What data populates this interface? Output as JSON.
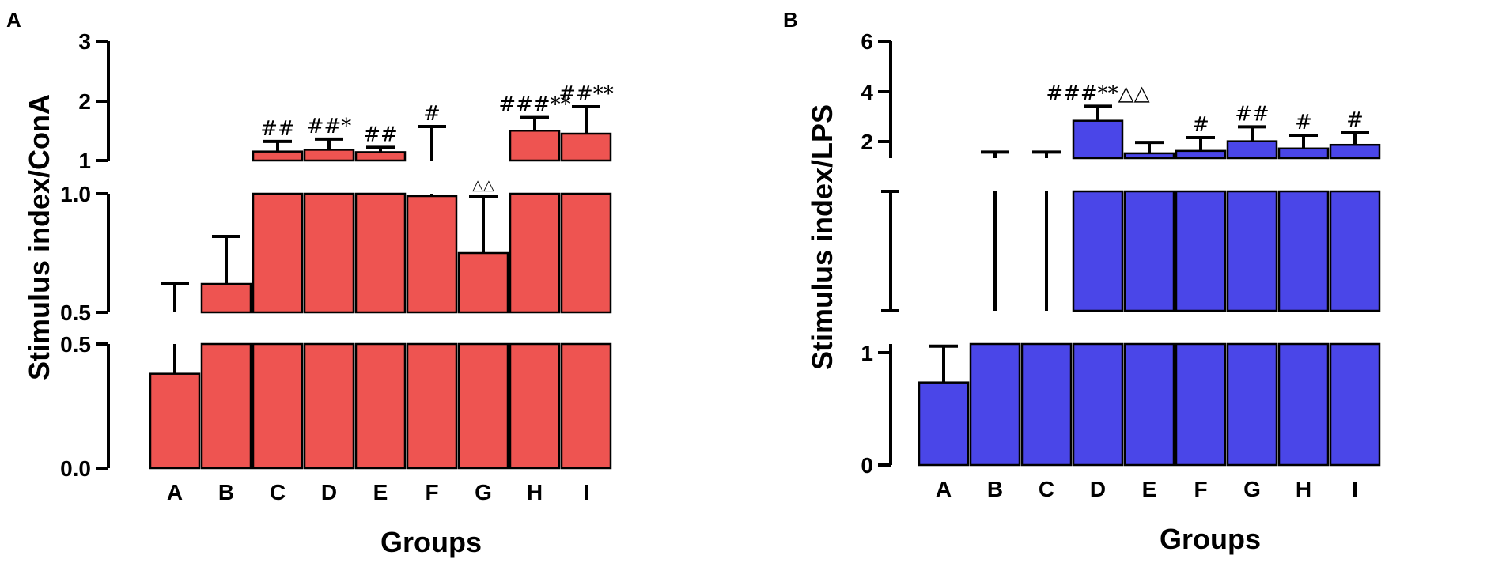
{
  "chart_data": [
    {
      "type": "bar",
      "panel": "A",
      "color": "#ee5451",
      "categories": [
        "A",
        "B",
        "C",
        "D",
        "E",
        "F",
        "G",
        "H",
        "I"
      ],
      "values": [
        0.38,
        0.62,
        1.15,
        1.18,
        1.14,
        0.99,
        0.75,
        1.5,
        1.45
      ],
      "error": [
        0.24,
        0.2,
        0.17,
        0.18,
        0.08,
        0.58,
        0.24,
        0.22,
        0.45
      ],
      "annotations": [
        "",
        "",
        "##",
        "##*",
        "##",
        "#",
        "△△",
        "###**",
        "##**"
      ],
      "xlabel": "Groups",
      "ylabel": "Stimulus index/ConA",
      "segments": [
        {
          "range": [
            0,
            0.5
          ],
          "ticks": [
            "0.0",
            "0.5"
          ]
        },
        {
          "range": [
            0.5,
            1.0
          ],
          "ticks": [
            "0.5",
            "1.0"
          ]
        },
        {
          "range": [
            1,
            3
          ],
          "ticks": [
            "1",
            "2",
            "3"
          ]
        }
      ]
    },
    {
      "type": "bar",
      "panel": "B",
      "color": "#4a46e8",
      "categories": [
        "A",
        "B",
        "C",
        "D",
        "E",
        "F",
        "G",
        "H",
        "I"
      ],
      "values": [
        0.75,
        1.1,
        1.1,
        2.7,
        1.35,
        1.45,
        1.85,
        1.55,
        1.7
      ],
      "error": [
        0.33,
        0.3,
        0.3,
        0.6,
        0.45,
        0.55,
        0.6,
        0.55,
        0.5
      ],
      "annotations": [
        "",
        "",
        "",
        "###**△△",
        "",
        "#",
        "##",
        "#",
        "#"
      ],
      "xlabel": "Groups",
      "ylabel": "Stimulus index/LPS",
      "segments": [
        {
          "range": [
            0,
            1.1
          ],
          "ticks": [
            "0",
            "1"
          ]
        },
        {
          "range": [
            1.1,
            1.15
          ],
          "ticks": []
        },
        {
          "range": [
            1.15,
            6
          ],
          "ticks": [
            "2",
            "4",
            "6"
          ]
        }
      ]
    }
  ]
}
